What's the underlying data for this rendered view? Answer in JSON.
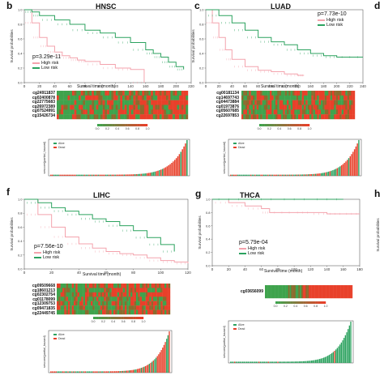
{
  "colors": {
    "high": "#f4a3ad",
    "low": "#2ca25f",
    "heat_high": "#e8402a",
    "heat_low": "#3fa34d",
    "alive": "#2ca25f",
    "dead": "#e8402a"
  },
  "panels": [
    {
      "letter": "b",
      "title": "HNSC",
      "p": "p=3.29e-11",
      "km_legend": [
        "High risk",
        "Low risk"
      ],
      "xlabel": "Survival time (month)",
      "ylabel": "Survival probabilities",
      "xticks": [
        "0",
        "20",
        "40",
        "60",
        "80",
        "100",
        "120",
        "140",
        "160",
        "180",
        "200",
        "220"
      ],
      "yticks": [
        "0.0",
        "0.2",
        "0.4",
        "0.6",
        "0.8",
        "1.0"
      ],
      "cpgs": [
        "cg24911837",
        "cg02400878",
        "cg22775683",
        "cg26972389",
        "cg07524991",
        "cg15426734"
      ],
      "colorbar_ticks": [
        "0.0",
        "0.2",
        "0.4",
        "0.6",
        "0.8",
        "1.0"
      ],
      "risk_ylabel": "sescore(partial_hazard)",
      "risk_legend": [
        "Alive",
        "Dead"
      ]
    },
    {
      "letter": "c",
      "title": "LUAD",
      "p": "p=7.73e-10",
      "km_legend": [
        "High risk",
        "Low risk"
      ],
      "xlabel": "Survival time (month)",
      "ylabel": "Survival probabilities",
      "xticks": [
        "0",
        "20",
        "40",
        "60",
        "80",
        "100",
        "120",
        "140",
        "160",
        "180",
        "200",
        "220",
        "240"
      ],
      "yticks": [
        "0.0",
        "0.2",
        "0.4",
        "0.6",
        "0.8",
        "1.0"
      ],
      "cpgs": [
        "cg00181134",
        "cg14697743",
        "cg04473884",
        "cg01973876",
        "cg05607685",
        "cg22697853"
      ],
      "colorbar_ticks": [
        "0.0",
        "0.2",
        "0.4",
        "0.6",
        "0.8",
        "1.0"
      ],
      "risk_ylabel": "sescore(partial_hazard)",
      "risk_legend": [
        "Alive",
        "Dead"
      ]
    },
    {
      "letter": "f",
      "title": "LIHC",
      "p": "p=7.56e-10",
      "km_legend": [
        "High risk",
        "Low risk"
      ],
      "xlabel": "Survival time (month)",
      "ylabel": "Survival probabilities",
      "xticks": [
        "0",
        "20",
        "40",
        "60",
        "80",
        "100",
        "120"
      ],
      "yticks": [
        "0.0",
        "0.2",
        "0.4",
        "0.6",
        "0.8",
        "1.0"
      ],
      "cpgs": [
        "cg09509668",
        "cg18601213",
        "cg02302754",
        "cg01178099",
        "cg12309753",
        "cg09471835",
        "cg22449745"
      ],
      "colorbar_ticks": [
        "0.0",
        "0.2",
        "0.4",
        "0.6",
        "0.8",
        "1.0"
      ],
      "risk_ylabel": "sescore(partial_hazard)",
      "risk_legend": [
        "Alive",
        "Dead"
      ]
    },
    {
      "letter": "g",
      "title": "THCA",
      "p": "p=5.79e-04",
      "km_legend": [
        "High risk",
        "Low risk"
      ],
      "xlabel": "Survival time (month)",
      "ylabel": "Survival probabilities",
      "xticks": [
        "0",
        "20",
        "40",
        "60",
        "80",
        "100",
        "120",
        "140",
        "160",
        "180"
      ],
      "yticks": [
        "0.0",
        "0.2",
        "0.4",
        "0.6",
        "0.8",
        "1.0"
      ],
      "cpgs": [
        "cg03656099"
      ],
      "colorbar_ticks": [
        "0.0",
        "0.2",
        "0.4",
        "0.6",
        "0.8",
        "1.0"
      ],
      "risk_ylabel": "sescore(partial_hazard)",
      "risk_legend": [
        "Alive",
        "Dead"
      ]
    }
  ],
  "edge_letters": [
    "d",
    "h"
  ],
  "chart_data": [
    {
      "type": "line",
      "title": "HNSC",
      "xlabel": "Survival time (month)",
      "ylabel": "Survival probabilities",
      "xlim": [
        0,
        220
      ],
      "ylim": [
        0,
        1
      ],
      "series": [
        {
          "name": "High risk",
          "x": [
            0,
            10,
            20,
            30,
            40,
            50,
            60,
            70,
            80,
            100,
            120,
            140,
            158
          ],
          "y": [
            1.0,
            0.82,
            0.62,
            0.5,
            0.42,
            0.37,
            0.34,
            0.31,
            0.29,
            0.25,
            0.2,
            0.18,
            0.0
          ]
        },
        {
          "name": "Low risk",
          "x": [
            0,
            10,
            20,
            40,
            60,
            80,
            100,
            120,
            140,
            160,
            170,
            180,
            190,
            200,
            210
          ],
          "y": [
            1.0,
            0.97,
            0.92,
            0.86,
            0.8,
            0.72,
            0.68,
            0.62,
            0.55,
            0.45,
            0.4,
            0.35,
            0.28,
            0.22,
            0.18
          ]
        }
      ]
    },
    {
      "type": "line",
      "title": "LUAD",
      "xlabel": "Survival time (month)",
      "ylabel": "Survival probabilities",
      "xlim": [
        0,
        240
      ],
      "ylim": [
        0,
        1
      ],
      "series": [
        {
          "name": "High risk",
          "x": [
            0,
            10,
            20,
            30,
            40,
            60,
            80,
            100,
            120,
            140,
            150
          ],
          "y": [
            1.0,
            0.82,
            0.62,
            0.45,
            0.32,
            0.22,
            0.17,
            0.15,
            0.12,
            0.1,
            0.1
          ]
        },
        {
          "name": "Low risk",
          "x": [
            0,
            20,
            40,
            60,
            80,
            100,
            120,
            140,
            160,
            180,
            200,
            240
          ],
          "y": [
            1.0,
            0.92,
            0.82,
            0.72,
            0.62,
            0.56,
            0.52,
            0.45,
            0.4,
            0.37,
            0.35,
            0.35
          ]
        }
      ]
    },
    {
      "type": "line",
      "title": "LIHC",
      "xlabel": "Survival time (month)",
      "ylabel": "Survival probabilities",
      "xlim": [
        0,
        120
      ],
      "ylim": [
        0,
        1
      ],
      "series": [
        {
          "name": "High risk",
          "x": [
            0,
            10,
            20,
            30,
            40,
            50,
            60,
            70,
            80,
            90,
            100,
            110,
            120
          ],
          "y": [
            1.0,
            0.78,
            0.6,
            0.46,
            0.36,
            0.3,
            0.25,
            0.22,
            0.2,
            0.16,
            0.12,
            0.1,
            0.08
          ]
        },
        {
          "name": "Low risk",
          "x": [
            0,
            10,
            20,
            30,
            40,
            50,
            60,
            70,
            80,
            90,
            100,
            110
          ],
          "y": [
            1.0,
            0.95,
            0.88,
            0.83,
            0.78,
            0.72,
            0.68,
            0.62,
            0.55,
            0.45,
            0.35,
            0.25
          ]
        }
      ]
    },
    {
      "type": "line",
      "title": "THCA",
      "xlabel": "Survival time (month)",
      "ylabel": "Survival probabilities",
      "xlim": [
        0,
        180
      ],
      "ylim": [
        0,
        1
      ],
      "series": [
        {
          "name": "High risk",
          "x": [
            0,
            20,
            40,
            60,
            70,
            100,
            120,
            140,
            160,
            180
          ],
          "y": [
            1.0,
            0.95,
            0.9,
            0.86,
            0.8,
            0.8,
            0.8,
            0.78,
            0.78,
            0.78
          ]
        },
        {
          "name": "Low risk",
          "x": [
            0,
            40,
            80,
            120,
            160
          ],
          "y": [
            1.0,
            1.0,
            1.0,
            1.0,
            1.0
          ]
        }
      ]
    }
  ]
}
